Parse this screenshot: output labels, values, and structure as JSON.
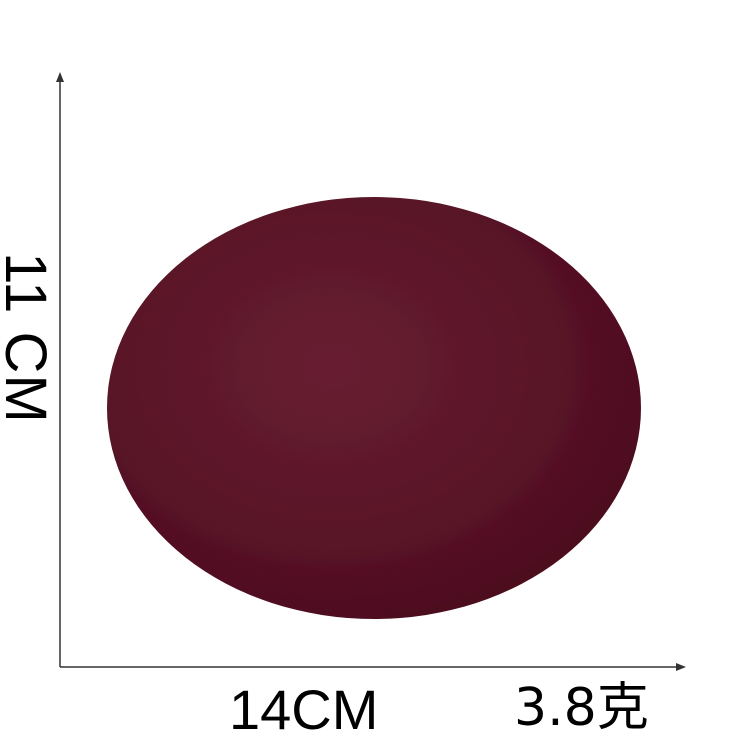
{
  "dimensions": {
    "height_label": "11 CM",
    "width_label": "14CM",
    "weight_label": "3.8克"
  },
  "patch": {
    "shape": "oval",
    "color": "#5a1a2a"
  },
  "colors": {
    "axis": "#333333",
    "text": "#000000",
    "background": "#ffffff"
  }
}
